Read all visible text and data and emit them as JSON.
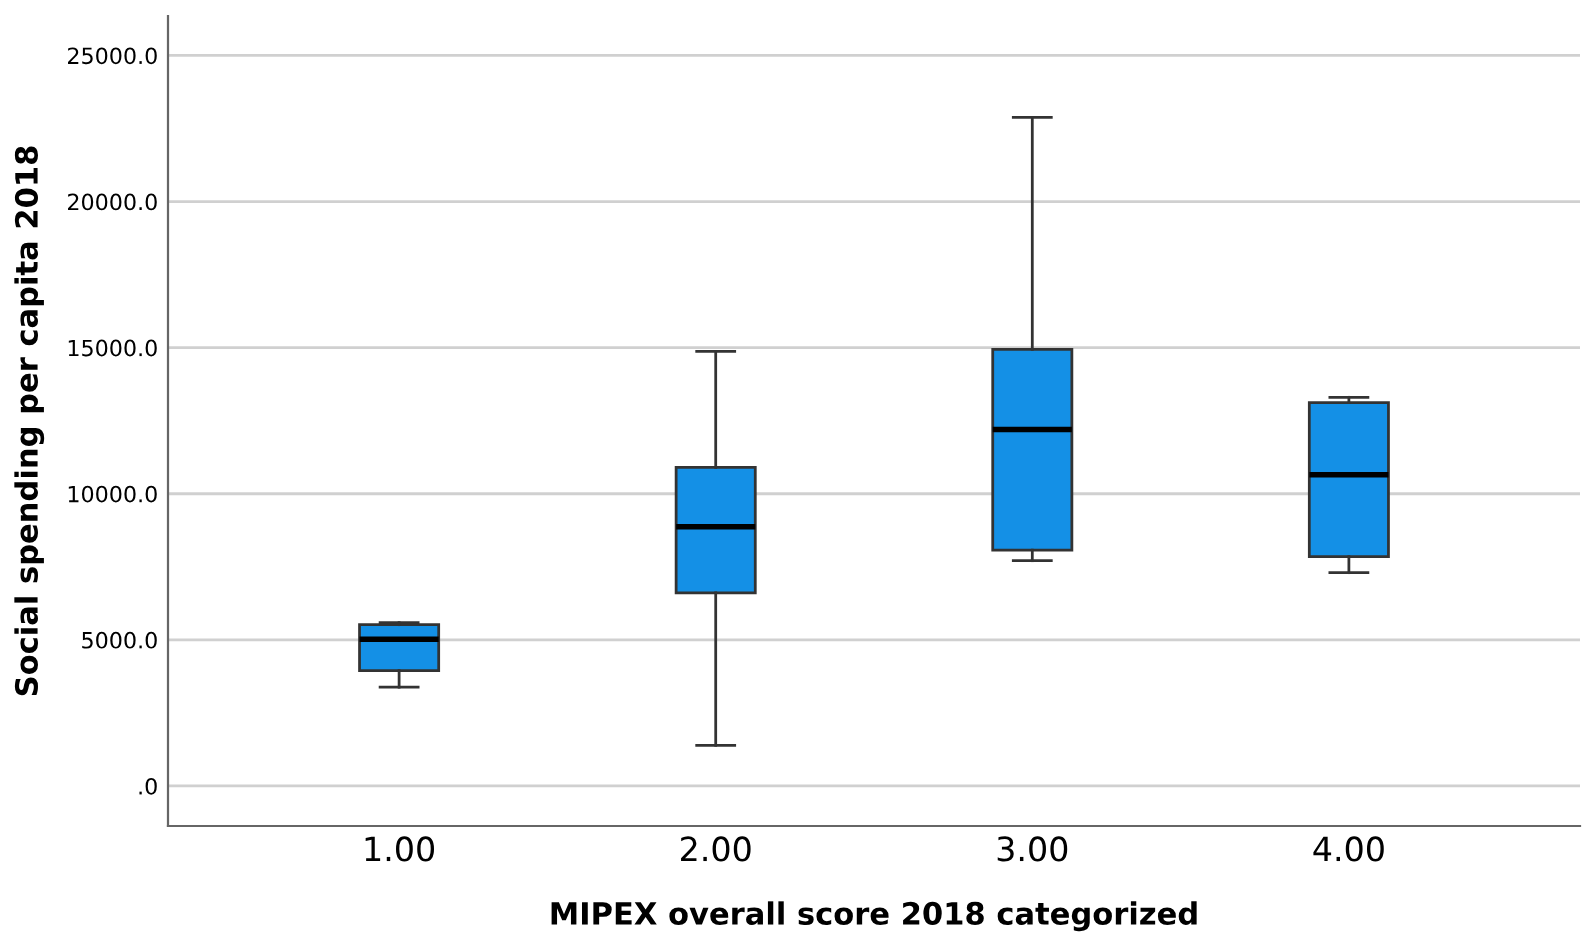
{
  "chart_data": {
    "type": "box",
    "xlabel": "MIPEX overall score 2018 categorized",
    "ylabel": "Social spending per capita 2018",
    "categories": [
      "1.00",
      "2.00",
      "3.00",
      "4.00"
    ],
    "series": [
      {
        "color": "#1490e6",
        "boxes": [
          {
            "low": 3380,
            "q1": 3950,
            "median": 5020,
            "q3": 5520,
            "high": 5590
          },
          {
            "low": 1390,
            "q1": 6610,
            "median": 8870,
            "q3": 10900,
            "high": 14870
          },
          {
            "low": 7710,
            "q1": 8070,
            "median": 12200,
            "q3": 14940,
            "high": 22880
          },
          {
            "low": 7300,
            "q1": 7850,
            "median": 10650,
            "q3": 13120,
            "high": 13300
          }
        ]
      }
    ],
    "ylim": [
      -1370,
      26350
    ],
    "yticks": [
      {
        "value": 0,
        "label": ".0"
      },
      {
        "value": 5000,
        "label": "5000.0"
      },
      {
        "value": 10000,
        "label": "10000.0"
      },
      {
        "value": 15000,
        "label": "15000.0"
      },
      {
        "value": 20000,
        "label": "20000.0"
      },
      {
        "value": 25000,
        "label": "25000.0"
      }
    ],
    "grid": "y"
  }
}
